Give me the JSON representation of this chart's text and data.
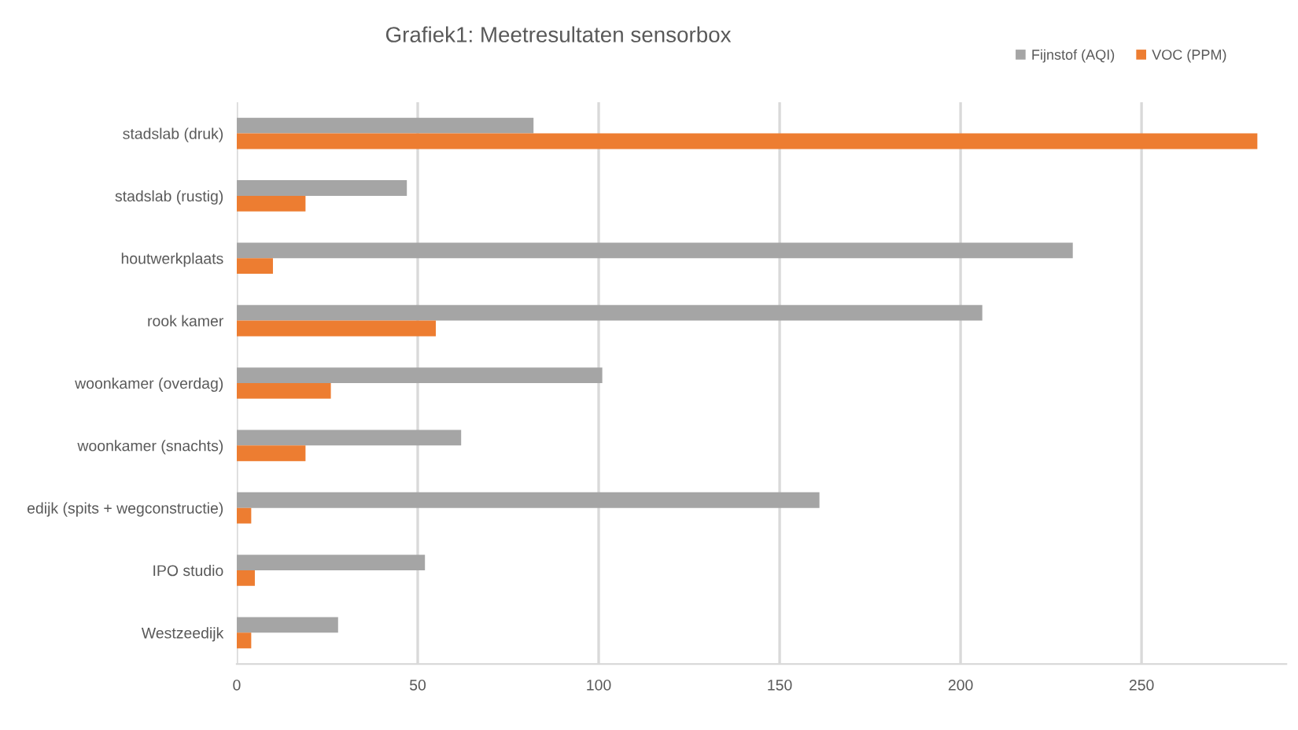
{
  "chart_data": {
    "type": "bar",
    "orientation": "horizontal",
    "title": "Grafiek1: Meetresultaten sensorbox",
    "categories": [
      "stadslab (druk)",
      "stadslab (rustig)",
      "houtwerkplaats",
      "rook kamer",
      "woonkamer (overdag)",
      "woonkamer (snachts)",
      "edijk (spits + wegconstructie)",
      "IPO studio",
      "Westzeedijk"
    ],
    "series": [
      {
        "name": "Fijnstof (AQI)",
        "color": "#a5a5a5",
        "values": [
          82,
          47,
          231,
          206,
          101,
          62,
          161,
          52,
          28
        ]
      },
      {
        "name": "VOC (PPM)",
        "color": "#ed7d31",
        "values": [
          282,
          19,
          10,
          55,
          26,
          19,
          4,
          5,
          4
        ]
      }
    ],
    "xlim": [
      0,
      290
    ],
    "xticks": [
      0,
      50,
      100,
      150,
      200,
      250
    ],
    "grid": "x",
    "legend": "top right"
  }
}
